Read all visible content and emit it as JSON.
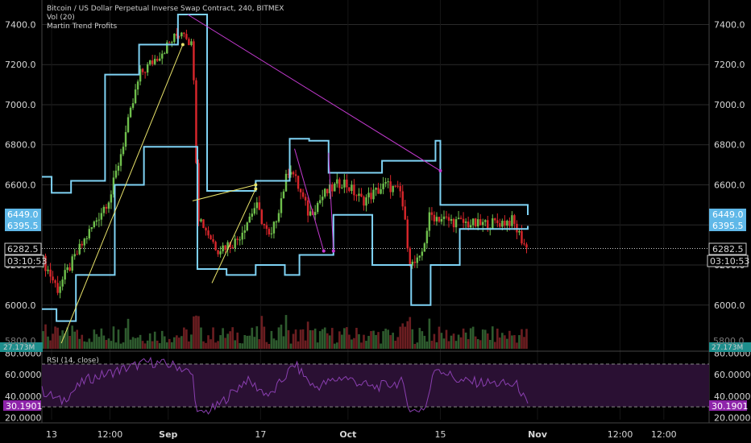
{
  "header": {
    "title": "Bitcoin / US Dollar Perpetual Inverse Swap Contract, 240, BITMEX",
    "indicator_vol": "Vol (20)",
    "indicator_strategy": "Martin Trend Profits",
    "rsi_label": "RSI (14, close)"
  },
  "colors": {
    "background": "#000000",
    "grid": "#2a2a2a",
    "channel": "#7fd3f5",
    "up_candle": "#6fbf4c",
    "down_candle": "#d8262b",
    "trend_up": "#e9e36a",
    "trend_down": "#c43ad0",
    "rsi_line": "#8a3fb0",
    "rsi_band": "#2a1033",
    "badge_blue": "#5fb8e8",
    "badge_teal": "#1e8e8c",
    "badge_purple": "#8e24aa"
  },
  "badges": {
    "price_upper": "6449.0",
    "price_lower": "6395.5",
    "last_price": "6282.5",
    "countdown": "03:10:53",
    "volume": "27.173M",
    "rsi_value": "30.1901",
    "partial_price": "5800.0"
  },
  "chart_data": [
    {
      "type": "candlestick",
      "panel": "price",
      "x_ticks": [
        "13",
        "12:00",
        "Sep",
        "17",
        "Oct",
        "15",
        "Nov",
        "12:00",
        "12:00"
      ],
      "y_ticks": [
        6000,
        6200,
        6400,
        6600,
        6800,
        7000,
        7200,
        7400
      ],
      "y_tick_labels": [
        "6000.0",
        "6200.0",
        "6400.0",
        "6600.0",
        "6800.0",
        "7000.0",
        "7200.0",
        "7400.0"
      ],
      "ylim": [
        5790,
        7450
      ],
      "approx_close_path": [
        {
          "t": 0.0,
          "v": 6220
        },
        {
          "t": 0.03,
          "v": 6080
        },
        {
          "t": 0.08,
          "v": 6300
        },
        {
          "t": 0.14,
          "v": 6550
        },
        {
          "t": 0.2,
          "v": 7150
        },
        {
          "t": 0.24,
          "v": 7250
        },
        {
          "t": 0.29,
          "v": 7380
        },
        {
          "t": 0.31,
          "v": 7280
        },
        {
          "t": 0.32,
          "v": 6450
        },
        {
          "t": 0.36,
          "v": 6280
        },
        {
          "t": 0.4,
          "v": 6320
        },
        {
          "t": 0.44,
          "v": 6500
        },
        {
          "t": 0.47,
          "v": 6320
        },
        {
          "t": 0.51,
          "v": 6700
        },
        {
          "t": 0.55,
          "v": 6450
        },
        {
          "t": 0.58,
          "v": 6550
        },
        {
          "t": 0.62,
          "v": 6620
        },
        {
          "t": 0.66,
          "v": 6520
        },
        {
          "t": 0.71,
          "v": 6600
        },
        {
          "t": 0.74,
          "v": 6560
        },
        {
          "t": 0.76,
          "v": 6200
        },
        {
          "t": 0.78,
          "v": 6220
        },
        {
          "t": 0.8,
          "v": 6450
        },
        {
          "t": 0.84,
          "v": 6420
        },
        {
          "t": 0.9,
          "v": 6400
        },
        {
          "t": 0.97,
          "v": 6420
        },
        {
          "t": 1.0,
          "v": 6282
        }
      ],
      "channel_upper": [
        {
          "t": 0.0,
          "v": 6640
        },
        {
          "t": 0.02,
          "v": 6560
        },
        {
          "t": 0.06,
          "v": 6620
        },
        {
          "t": 0.13,
          "v": 7150
        },
        {
          "t": 0.2,
          "v": 7300
        },
        {
          "t": 0.28,
          "v": 7450
        },
        {
          "t": 0.33,
          "v": 7450
        },
        {
          "t": 0.34,
          "v": 6570
        },
        {
          "t": 0.44,
          "v": 6620
        },
        {
          "t": 0.51,
          "v": 6830
        },
        {
          "t": 0.55,
          "v": 6820
        },
        {
          "t": 0.59,
          "v": 6660
        },
        {
          "t": 0.66,
          "v": 6660
        },
        {
          "t": 0.7,
          "v": 6720
        },
        {
          "t": 0.78,
          "v": 6720
        },
        {
          "t": 0.81,
          "v": 6820
        },
        {
          "t": 0.82,
          "v": 6500
        },
        {
          "t": 0.93,
          "v": 6500
        },
        {
          "t": 1.0,
          "v": 6449
        }
      ],
      "channel_lower": [
        {
          "t": 0.0,
          "v": 5980
        },
        {
          "t": 0.03,
          "v": 5920
        },
        {
          "t": 0.07,
          "v": 6150
        },
        {
          "t": 0.15,
          "v": 6600
        },
        {
          "t": 0.21,
          "v": 6790
        },
        {
          "t": 0.3,
          "v": 6790
        },
        {
          "t": 0.32,
          "v": 6180
        },
        {
          "t": 0.38,
          "v": 6150
        },
        {
          "t": 0.44,
          "v": 6200
        },
        {
          "t": 0.5,
          "v": 6150
        },
        {
          "t": 0.53,
          "v": 6250
        },
        {
          "t": 0.6,
          "v": 6450
        },
        {
          "t": 0.68,
          "v": 6200
        },
        {
          "t": 0.76,
          "v": 6000
        },
        {
          "t": 0.79,
          "v": 6000
        },
        {
          "t": 0.8,
          "v": 6200
        },
        {
          "t": 0.86,
          "v": 6380
        },
        {
          "t": 1.0,
          "v": 6395
        }
      ],
      "trend_lines": [
        {
          "color": "up",
          "from": {
            "t": 0.04,
            "v": 5810
          },
          "to": {
            "t": 0.29,
            "v": 7300
          }
        },
        {
          "color": "down",
          "from": {
            "t": 0.3,
            "v": 7450
          },
          "to": {
            "t": 0.82,
            "v": 6670
          }
        },
        {
          "color": "up",
          "from": {
            "t": 0.31,
            "v": 6520
          },
          "to": {
            "t": 0.44,
            "v": 6600
          }
        },
        {
          "color": "up",
          "from": {
            "t": 0.35,
            "v": 6110
          },
          "to": {
            "t": 0.44,
            "v": 6580
          }
        },
        {
          "color": "down",
          "from": {
            "t": 0.52,
            "v": 6780
          },
          "to": {
            "t": 0.58,
            "v": 6270
          }
        },
        {
          "color": "down",
          "from": {
            "t": 0.59,
            "v": 6760
          },
          "to": {
            "t": 0.6,
            "v": 6270
          }
        }
      ]
    },
    {
      "type": "bar",
      "panel": "volume",
      "series": [
        {
          "values": []
        }
      ]
    },
    {
      "type": "line",
      "panel": "rsi",
      "y_ticks": [
        20,
        30.1901,
        40,
        60,
        80
      ],
      "y_tick_labels": [
        "20.0000",
        "30.1901",
        "40.0000",
        "60.0000",
        "80.0000"
      ],
      "ylim": [
        18,
        82
      ],
      "band": [
        30,
        70
      ],
      "approx_path": [
        {
          "t": 0.0,
          "v": 45
        },
        {
          "t": 0.04,
          "v": 35
        },
        {
          "t": 0.09,
          "v": 55
        },
        {
          "t": 0.15,
          "v": 63
        },
        {
          "t": 0.22,
          "v": 72
        },
        {
          "t": 0.28,
          "v": 68
        },
        {
          "t": 0.31,
          "v": 60
        },
        {
          "t": 0.32,
          "v": 22
        },
        {
          "t": 0.36,
          "v": 30
        },
        {
          "t": 0.42,
          "v": 55
        },
        {
          "t": 0.47,
          "v": 40
        },
        {
          "t": 0.52,
          "v": 70
        },
        {
          "t": 0.56,
          "v": 48
        },
        {
          "t": 0.62,
          "v": 58
        },
        {
          "t": 0.68,
          "v": 48
        },
        {
          "t": 0.74,
          "v": 53
        },
        {
          "t": 0.76,
          "v": 25
        },
        {
          "t": 0.79,
          "v": 30
        },
        {
          "t": 0.81,
          "v": 68
        },
        {
          "t": 0.86,
          "v": 54
        },
        {
          "t": 0.93,
          "v": 52
        },
        {
          "t": 0.98,
          "v": 50
        },
        {
          "t": 1.0,
          "v": 30
        }
      ]
    }
  ]
}
